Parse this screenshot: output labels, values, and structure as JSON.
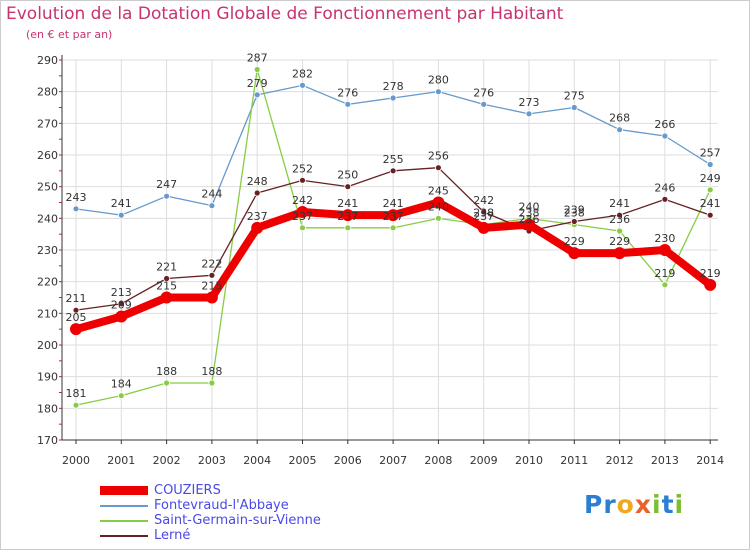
{
  "title": "Evolution de la Dotation Globale de Fonctionnement par Habitant",
  "subtitle": "(en € et par an)",
  "logo": {
    "part1": "Pr",
    "part2": "o",
    "part3": "x",
    "part4": "i",
    "part5": "t",
    "part6": "i"
  },
  "colors": {
    "couziers": "#ee0000",
    "fontevraud": "#6699cc",
    "saint_germain": "#88cc44",
    "lerne": "#662222",
    "axis_text": "#333333",
    "grid": "#dddddd"
  },
  "chart_data": {
    "type": "line",
    "title": "Evolution de la Dotation Globale de Fonctionnement par Habitant",
    "subtitle": "(en € et par an)",
    "xlabel": "",
    "ylabel": "",
    "ylim": [
      170,
      290
    ],
    "yticks": [
      170,
      180,
      190,
      200,
      210,
      220,
      230,
      240,
      250,
      260,
      270,
      280,
      290
    ],
    "categories": [
      "2000",
      "2001",
      "2002",
      "2003",
      "2004",
      "2005",
      "2006",
      "2007",
      "2008",
      "2009",
      "2010",
      "2011",
      "2012",
      "2013",
      "2014"
    ],
    "grid": true,
    "legend_position": "bottom-left",
    "series": [
      {
        "name": "COUZIERS",
        "key": "couziers",
        "values": [
          205,
          209,
          215,
          215,
          237,
          242,
          241,
          241,
          245,
          237,
          238,
          229,
          229,
          230,
          219
        ]
      },
      {
        "name": "Fontevraud-l'Abbaye",
        "key": "fontevraud",
        "values": [
          243,
          241,
          247,
          244,
          279,
          282,
          276,
          278,
          280,
          276,
          273,
          275,
          268,
          266,
          257
        ]
      },
      {
        "name": "Saint-Germain-sur-Vienne",
        "key": "saint_germain",
        "values": [
          181,
          184,
          188,
          188,
          287,
          237,
          237,
          237,
          240,
          238,
          240,
          238,
          236,
          219,
          249
        ]
      },
      {
        "name": "Lerné",
        "key": "lerne",
        "values": [
          211,
          213,
          221,
          222,
          248,
          252,
          250,
          255,
          256,
          242,
          236,
          239,
          241,
          246,
          241
        ]
      }
    ]
  }
}
